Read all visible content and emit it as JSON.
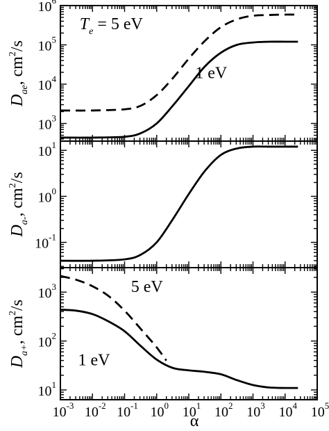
{
  "chart_data": [
    {
      "type": "line",
      "panel": "top",
      "ylabel_main": "D",
      "ylabel_sub": "ae",
      "ylabel_unit": ", cm",
      "ylabel_unit_sup": "2",
      "ylabel_unit_tail": "/s",
      "yscale": "log",
      "xscale": "log",
      "ylim_exp": [
        2.55,
        6
      ],
      "yticks": [
        {
          "base": "10",
          "exp": "3"
        },
        {
          "base": "10",
          "exp": "4"
        },
        {
          "base": "10",
          "exp": "5"
        },
        {
          "base": "10",
          "exp": "6"
        }
      ],
      "series": [
        {
          "style": "dashed",
          "log_x": [
            -3,
            -2,
            -1,
            -0.5,
            0,
            0.5,
            1,
            1.5,
            2,
            2.5,
            3,
            3.5,
            4,
            4.4
          ],
          "log_y": [
            3.33,
            3.33,
            3.36,
            3.45,
            3.72,
            4.15,
            4.65,
            5.1,
            5.45,
            5.65,
            5.74,
            5.76,
            5.77,
            5.77
          ]
        },
        {
          "style": "solid",
          "log_x": [
            -3,
            -2,
            -1,
            -0.5,
            0,
            0.5,
            1,
            1.5,
            2,
            2.5,
            3,
            3.5,
            4,
            4.4
          ],
          "log_y": [
            2.64,
            2.64,
            2.66,
            2.75,
            3.0,
            3.45,
            3.95,
            4.45,
            4.8,
            5.0,
            5.06,
            5.08,
            5.08,
            5.08
          ]
        }
      ],
      "annotations": [
        {
          "text": "T",
          "sub": "e",
          "tail": " = 5 eV",
          "log_x": -2.4,
          "log_y": 5.4
        },
        {
          "text": "1 eV",
          "log_x": 1.2,
          "log_y": 4.15
        }
      ]
    },
    {
      "type": "line",
      "panel": "middle",
      "ylabel_main": "D",
      "ylabel_sub": "a-",
      "ylabel_unit": ", cm",
      "ylabel_unit_sup": "2",
      "ylabel_unit_tail": "/s",
      "yscale": "log",
      "xscale": "log",
      "ylim_exp": [
        -1.55,
        1.2
      ],
      "yticks": [
        {
          "base": "10",
          "exp": "-1"
        },
        {
          "base": "10",
          "exp": "0"
        },
        {
          "base": "10",
          "exp": "1"
        }
      ],
      "series": [
        {
          "style": "solid",
          "log_x": [
            -3,
            -2,
            -1,
            -0.5,
            0,
            0.5,
            1,
            1.5,
            2,
            2.5,
            3,
            3.5,
            4,
            4.4
          ],
          "log_y": [
            -1.4,
            -1.4,
            -1.37,
            -1.27,
            -1.0,
            -0.5,
            0.05,
            0.55,
            0.9,
            1.04,
            1.08,
            1.08,
            1.08,
            1.08
          ]
        }
      ],
      "annotations": []
    },
    {
      "type": "line",
      "panel": "bottom",
      "ylabel_main": "D",
      "ylabel_sub": "a+",
      "ylabel_unit": ", cm",
      "ylabel_unit_sup": "2",
      "ylabel_unit_tail": "/s",
      "xlabel": "α",
      "yscale": "log",
      "xscale": "log",
      "ylim_exp": [
        0.8,
        3.5
      ],
      "xlim_exp": [
        -3,
        5
      ],
      "yticks": [
        {
          "base": "10",
          "exp": "1"
        },
        {
          "base": "10",
          "exp": "2"
        },
        {
          "base": "10",
          "exp": "3"
        }
      ],
      "xticks": [
        {
          "base": "10",
          "exp": "-3"
        },
        {
          "base": "10",
          "exp": "-2"
        },
        {
          "base": "10",
          "exp": "-1"
        },
        {
          "base": "10",
          "exp": "0"
        },
        {
          "base": "10",
          "exp": "1"
        },
        {
          "base": "10",
          "exp": "2"
        },
        {
          "base": "10",
          "exp": "3"
        },
        {
          "base": "10",
          "exp": "4"
        },
        {
          "base": "10",
          "exp": "5"
        }
      ],
      "series": [
        {
          "style": "dashed",
          "log_x": [
            -3,
            -2.5,
            -2,
            -1.5,
            -1,
            -0.5,
            0,
            0.3
          ],
          "log_y": [
            3.33,
            3.25,
            3.12,
            2.92,
            2.62,
            2.25,
            1.87,
            1.6
          ]
        },
        {
          "style": "solid",
          "log_x": [
            -3,
            -2.5,
            -2,
            -1.5,
            -1,
            -0.5,
            0,
            0.5,
            1,
            1.5,
            2,
            2.5,
            3,
            3.5,
            4,
            4.4
          ],
          "log_y": [
            2.64,
            2.62,
            2.55,
            2.4,
            2.2,
            1.9,
            1.62,
            1.45,
            1.4,
            1.37,
            1.32,
            1.2,
            1.1,
            1.05,
            1.04,
            1.04
          ]
        }
      ],
      "annotations": [
        {
          "text": "5 eV",
          "log_x": -0.8,
          "log_y": 3.0
        },
        {
          "text": "1 eV",
          "log_x": -2.45,
          "log_y": 1.5
        }
      ]
    }
  ]
}
